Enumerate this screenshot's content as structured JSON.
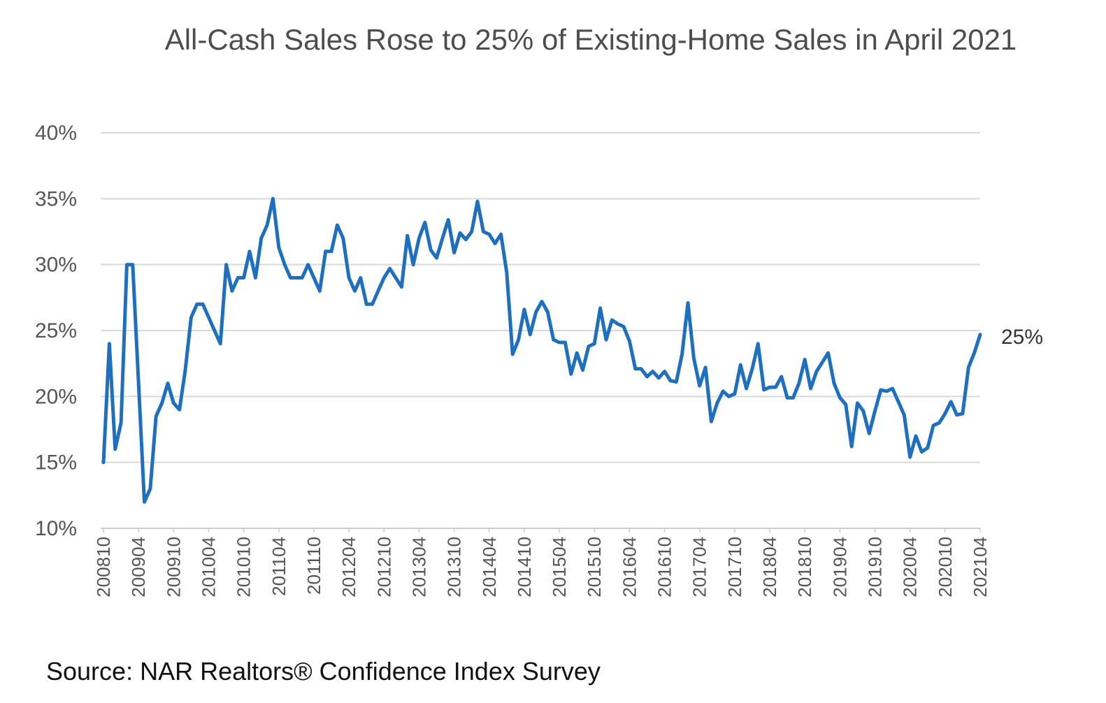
{
  "chart_data": {
    "type": "line",
    "title": "All-Cash Sales Rose to 25% of Existing-Home Sales in April 2021",
    "source": "Source: NAR  Realtors® Confidence Index Survey",
    "end_label": "25%",
    "ylim": [
      10,
      40
    ],
    "y_ticks": [
      "10%",
      "15%",
      "20%",
      "25%",
      "30%",
      "35%",
      "40%"
    ],
    "y_tick_values": [
      10,
      15,
      20,
      25,
      30,
      35,
      40
    ],
    "x_tick_labels": [
      "200810",
      "200904",
      "200910",
      "201004",
      "201010",
      "201104",
      "201110",
      "201204",
      "201210",
      "201304",
      "201310",
      "201404",
      "201410",
      "201504",
      "201510",
      "201604",
      "201610",
      "201704",
      "201710",
      "201804",
      "201810",
      "201904",
      "201910",
      "202004",
      "202010",
      "202104"
    ],
    "grid": true,
    "line_color": "#1f6fbf",
    "x_start": "2008-10",
    "x_end": "2021-04",
    "series": [
      {
        "name": "",
        "values": [
          15,
          24,
          16,
          18,
          30,
          30,
          21,
          12,
          13,
          18.5,
          19.5,
          21,
          19.5,
          19,
          22,
          26,
          27,
          27,
          26,
          25,
          24,
          30,
          28,
          29,
          29,
          31,
          29,
          32,
          33,
          35,
          31.3,
          30,
          29,
          29,
          29,
          30,
          29,
          28,
          31,
          31,
          33,
          32,
          29,
          28,
          29,
          27,
          27,
          28,
          29,
          29.7,
          29,
          28.3,
          32.2,
          30,
          32,
          33.2,
          31.1,
          30.5,
          32,
          33.4,
          30.9,
          32.4,
          31.9,
          32.5,
          34.8,
          32.5,
          32.3,
          31.6,
          32.3,
          29.4,
          23.2,
          24.3,
          26.6,
          24.7,
          26.4,
          27.2,
          26.4,
          24.3,
          24.1,
          24.1,
          21.7,
          23.3,
          22,
          23.8,
          24,
          26.7,
          24.3,
          25.8,
          25.5,
          25.3,
          24.2,
          22.1,
          22.1,
          21.5,
          21.9,
          21.4,
          21.9,
          21.2,
          21.1,
          23.2,
          27.1,
          22.9,
          20.8,
          22.2,
          18.1,
          19.5,
          20.4,
          20,
          20.2,
          22.4,
          20.6,
          22.1,
          24,
          20.5,
          20.7,
          20.7,
          21.5,
          19.9,
          19.9,
          21,
          22.8,
          20.6,
          21.9,
          22.6,
          23.3,
          21,
          19.9,
          19.4,
          16.2,
          19.5,
          18.9,
          17.2,
          18.9,
          20.5,
          20.4,
          20.6,
          19.6,
          18.6,
          15.4,
          17,
          15.8,
          16.1,
          17.8,
          18,
          18.7,
          19.6,
          18.6,
          18.7,
          22.2,
          23.3,
          24.7
        ]
      }
    ]
  }
}
